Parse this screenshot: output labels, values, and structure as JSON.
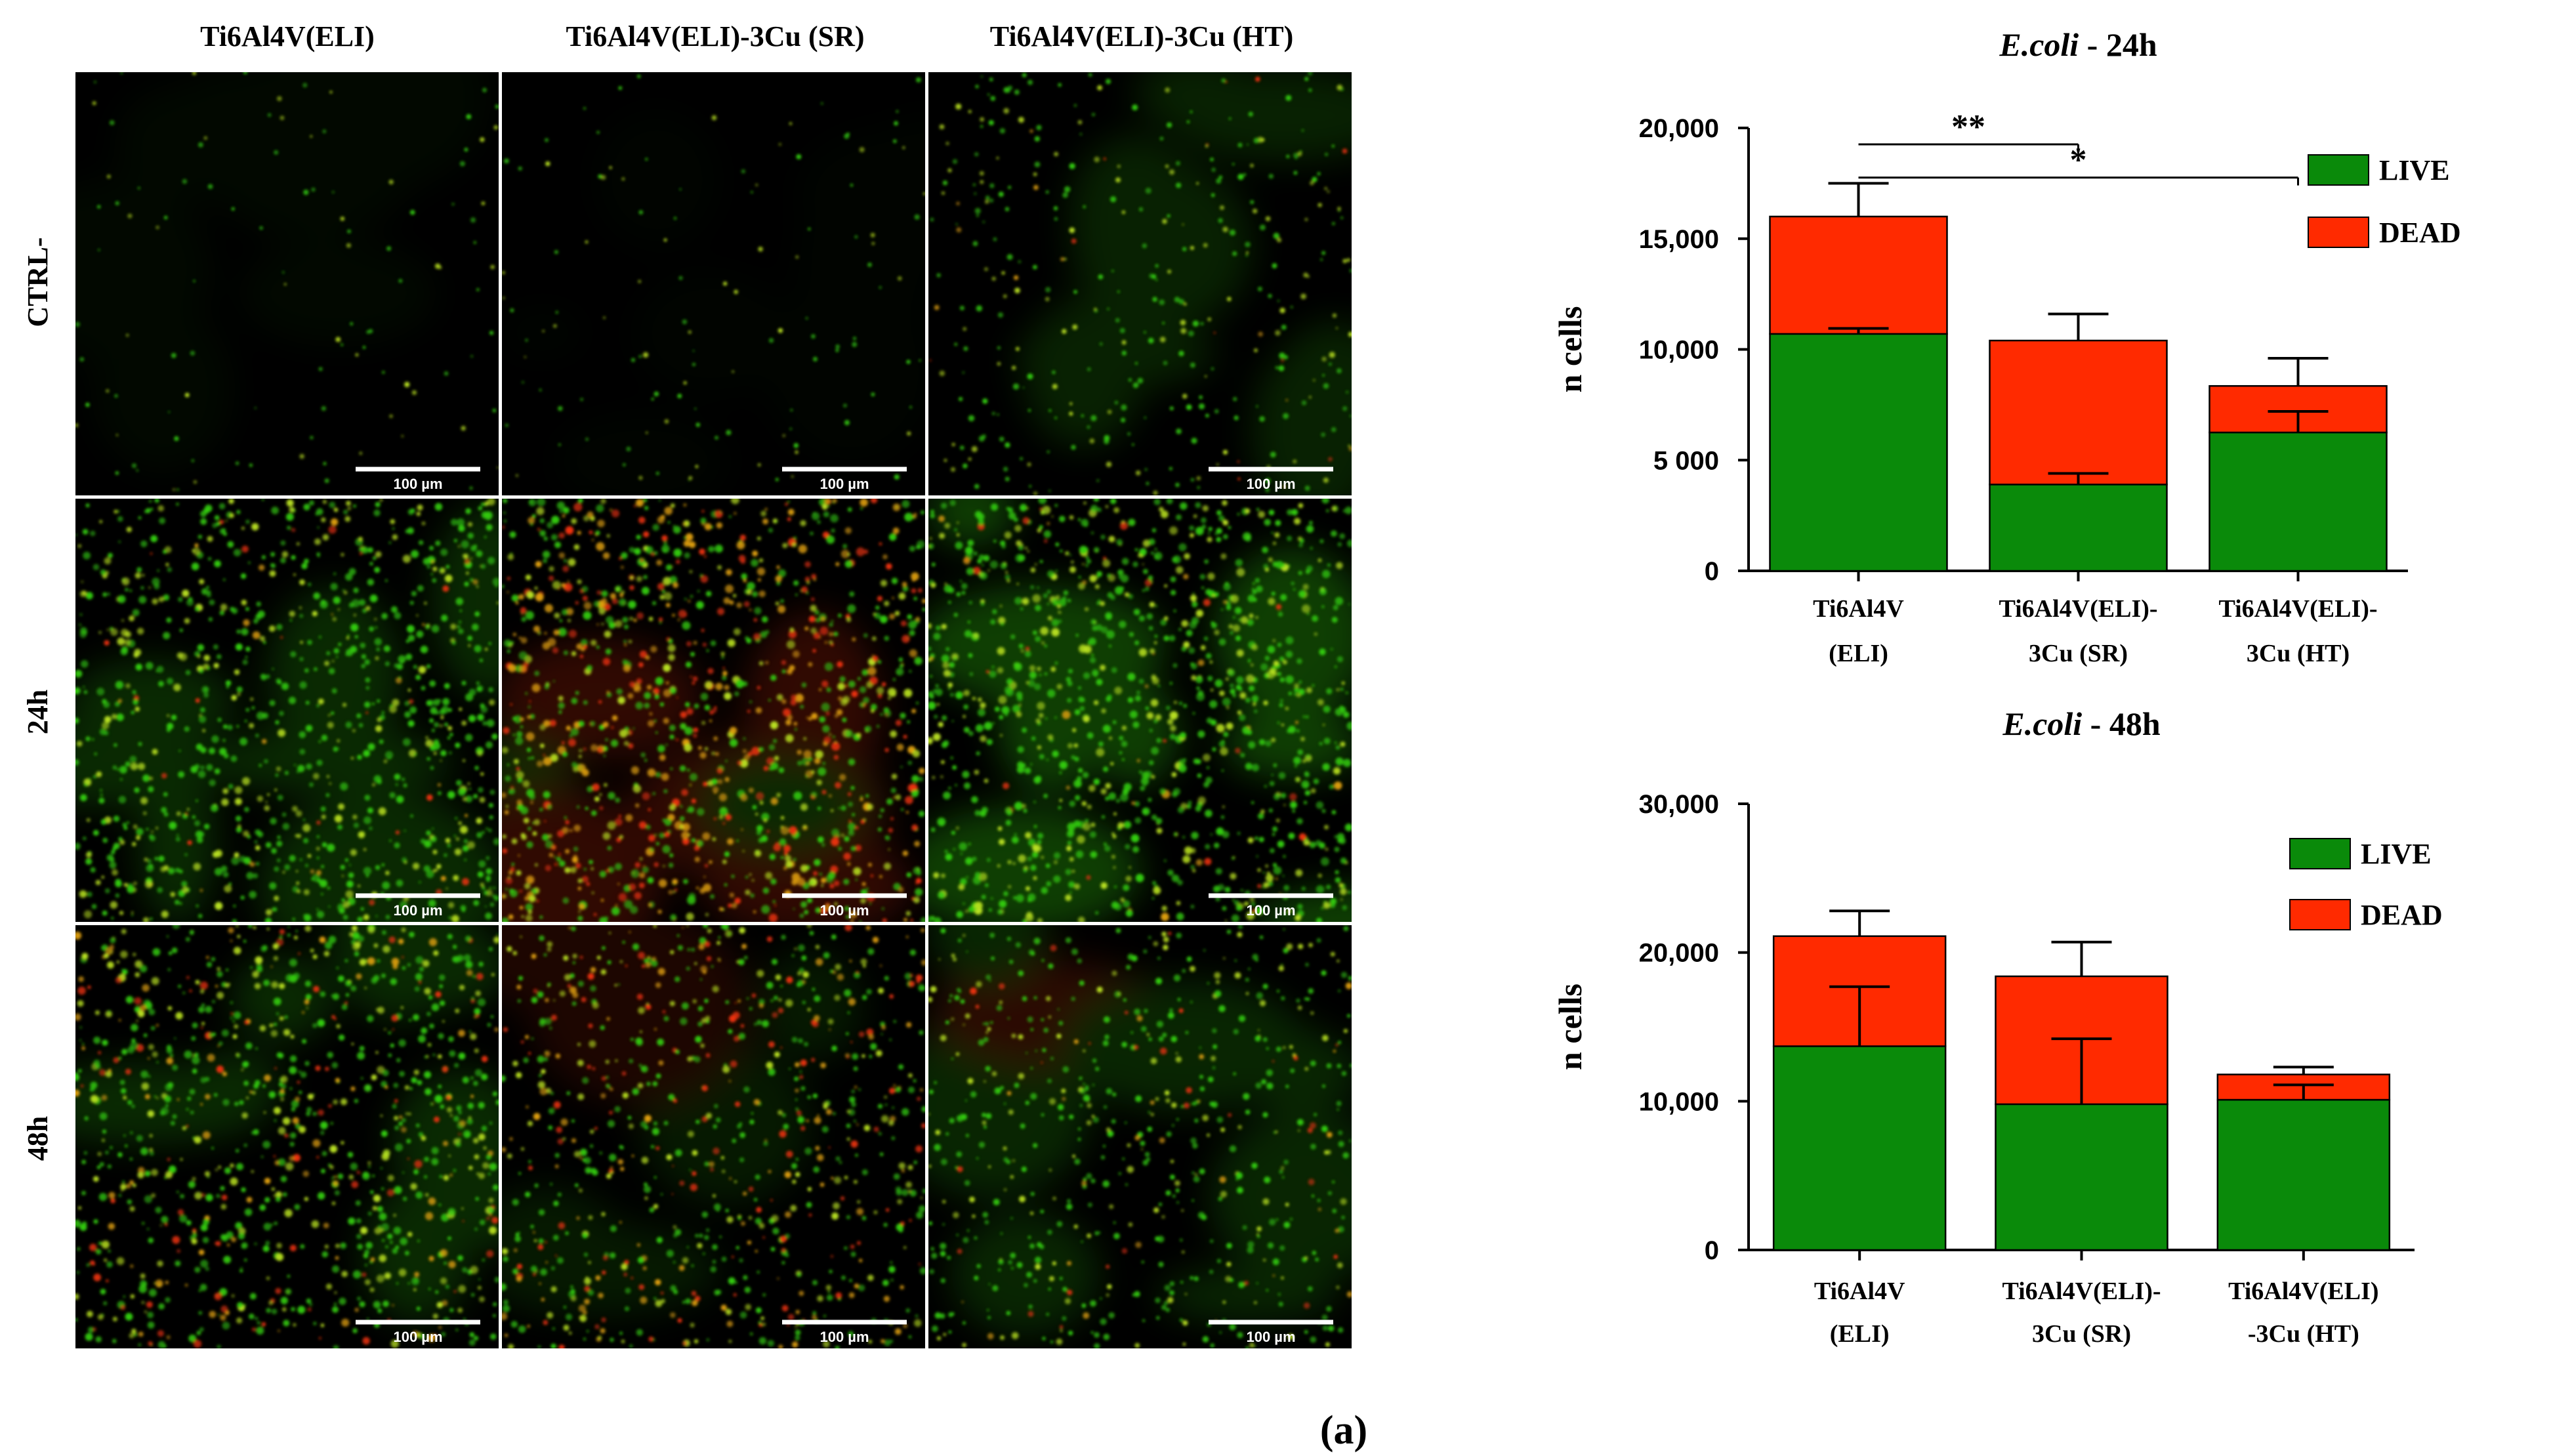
{
  "micrographs": {
    "column_headers": [
      "Ti6Al4V(ELI)",
      "Ti6Al4V(ELI)-3Cu (SR)",
      "Ti6Al4V(ELI)-3Cu (HT)"
    ],
    "row_labels": [
      "CTRL-",
      "24h",
      "48h"
    ],
    "scale_bar_label": "100 µm",
    "colors": {
      "live": "#33cc11",
      "dead": "#ee3311",
      "background": "#000000"
    },
    "panels": [
      {
        "row": "CTRL-",
        "column": "Ti6Al4V(ELI)",
        "density": 0.05,
        "dead_fraction": 0.0,
        "haze": 0.04
      },
      {
        "row": "CTRL-",
        "column": "Ti6Al4V(ELI)-3Cu (SR)",
        "density": 0.06,
        "dead_fraction": 0.0,
        "haze": 0.02
      },
      {
        "row": "CTRL-",
        "column": "Ti6Al4V(ELI)-3Cu (HT)",
        "density": 0.25,
        "dead_fraction": 0.05,
        "haze": 0.16
      },
      {
        "row": "24h",
        "column": "Ti6Al4V(ELI)",
        "density": 0.75,
        "dead_fraction": 0.05,
        "haze": 0.2
      },
      {
        "row": "24h",
        "column": "Ti6Al4V(ELI)-3Cu (SR)",
        "density": 0.9,
        "dead_fraction": 0.45,
        "haze": 0.2
      },
      {
        "row": "24h",
        "column": "Ti6Al4V(ELI)-3Cu (HT)",
        "density": 0.85,
        "dead_fraction": 0.05,
        "haze": 0.3
      },
      {
        "row": "48h",
        "column": "Ti6Al4V(ELI)",
        "density": 0.75,
        "dead_fraction": 0.2,
        "haze": 0.2
      },
      {
        "row": "48h",
        "column": "Ti6Al4V(ELI)-3Cu (SR)",
        "density": 0.6,
        "dead_fraction": 0.35,
        "haze": 0.12
      },
      {
        "row": "48h",
        "column": "Ti6Al4V(ELI)-3Cu (HT)",
        "density": 0.45,
        "dead_fraction": 0.1,
        "haze": 0.18
      }
    ]
  },
  "chart_data": [
    {
      "type": "bar",
      "stacked": true,
      "title_italic": "E.coli",
      "title_rest": " - 24h",
      "ylabel": "n cells",
      "ylim": [
        0,
        20000
      ],
      "yticks": [
        0,
        5000,
        10000,
        15000,
        20000
      ],
      "ytick_labels": [
        "0",
        "5 000",
        "10,000",
        "15,000",
        "20,000"
      ],
      "categories": [
        [
          "Ti6Al4V",
          "(ELI)"
        ],
        [
          "Ti6Al4V(ELI)-",
          "3Cu (SR)"
        ],
        [
          "Ti6Al4V(ELI)-",
          "3Cu (HT)"
        ]
      ],
      "series": [
        {
          "name": "LIVE",
          "color": "#0a8a0a",
          "values": [
            10700,
            3900,
            6250
          ],
          "errors": [
            250,
            500,
            950
          ]
        },
        {
          "name": "DEAD",
          "color": "#ff2a00",
          "values": [
            5300,
            6500,
            2100
          ],
          "errors": [
            1500,
            1200,
            1250
          ]
        }
      ],
      "legend_position": "right",
      "significance": [
        {
          "label": "**",
          "from": 0,
          "to": 1
        },
        {
          "label": "*",
          "from": 0,
          "to": 2
        }
      ]
    },
    {
      "type": "bar",
      "stacked": true,
      "title_italic": "E.coli",
      "title_rest": " - 48h",
      "ylabel": "n cells",
      "ylim": [
        0,
        30000
      ],
      "yticks": [
        0,
        10000,
        20000,
        30000
      ],
      "ytick_labels": [
        "0",
        "10,000",
        "20,000",
        "30,000"
      ],
      "categories": [
        [
          "Ti6Al4V",
          "(ELI)"
        ],
        [
          "Ti6Al4V(ELI)-",
          "3Cu (SR)"
        ],
        [
          "Ti6Al4V(ELI)",
          "-3Cu (HT)"
        ]
      ],
      "series": [
        {
          "name": "LIVE",
          "color": "#0a8a0a",
          "values": [
            13700,
            9800,
            10100
          ],
          "errors": [
            4000,
            4400,
            1000
          ]
        },
        {
          "name": "DEAD",
          "color": "#ff2a00",
          "values": [
            7400,
            8600,
            1700
          ],
          "errors": [
            1700,
            2300,
            500
          ]
        }
      ],
      "legend_position": "right",
      "significance": []
    }
  ],
  "caption": "(a)"
}
